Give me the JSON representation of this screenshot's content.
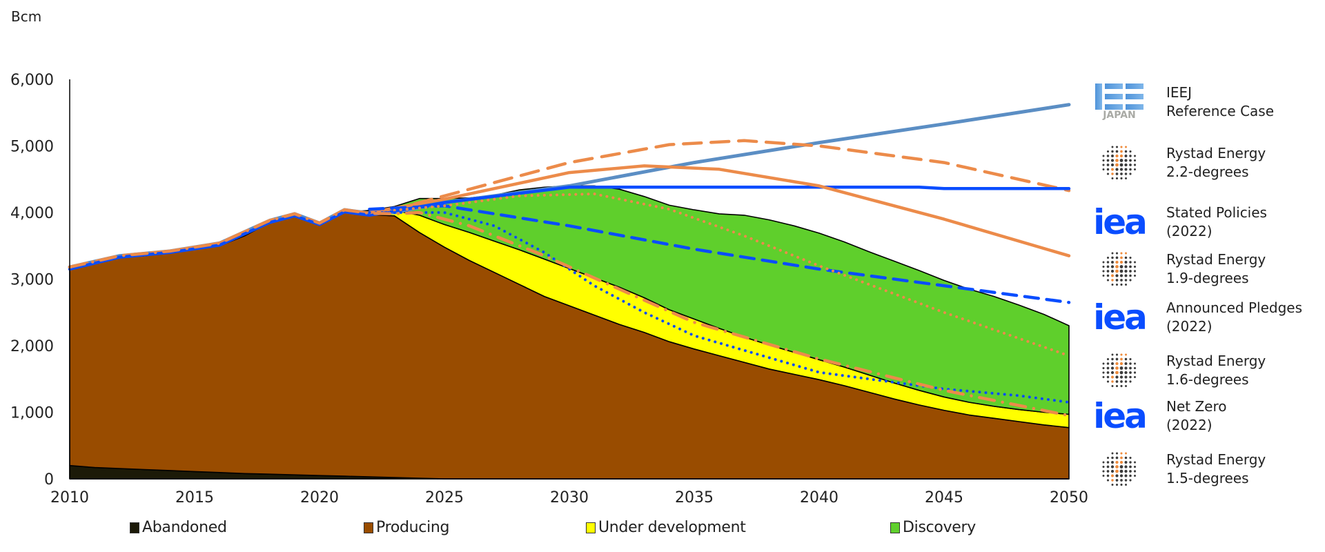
{
  "chart_data": {
    "type": "area",
    "title": "",
    "ylabel": "Bcm",
    "xlabel": "",
    "ylim": [
      0,
      6000
    ],
    "xlim": [
      2010,
      2050
    ],
    "yticks": [
      "0",
      "1,000",
      "2,000",
      "3,000",
      "4,000",
      "5,000",
      "6,000"
    ],
    "ytick_values": [
      0,
      1000,
      2000,
      3000,
      4000,
      5000,
      6000
    ],
    "xticks": [
      "2010",
      "2015",
      "2020",
      "2025",
      "2030",
      "2035",
      "2040",
      "2045",
      "2050"
    ],
    "xtick_values": [
      2010,
      2015,
      2020,
      2025,
      2030,
      2035,
      2040,
      2045,
      2050
    ],
    "grid": false,
    "x": [
      2010,
      2011,
      2012,
      2013,
      2014,
      2015,
      2016,
      2017,
      2018,
      2019,
      2020,
      2021,
      2022,
      2023,
      2024,
      2025,
      2026,
      2027,
      2028,
      2029,
      2030,
      2031,
      2032,
      2033,
      2034,
      2035,
      2036,
      2037,
      2038,
      2039,
      2040,
      2041,
      2042,
      2043,
      2044,
      2045,
      2046,
      2047,
      2048,
      2049,
      2050
    ],
    "stacked_series": [
      {
        "name": "Abandoned",
        "color": "#1c1a08",
        "values": [
          200,
          170,
          155,
          140,
          125,
          110,
          95,
          80,
          70,
          60,
          50,
          40,
          30,
          20,
          10,
          0,
          0,
          0,
          0,
          0,
          0,
          0,
          0,
          0,
          0,
          0,
          0,
          0,
          0,
          0,
          0,
          0,
          0,
          0,
          0,
          0,
          0,
          0,
          0,
          0,
          0
        ]
      },
      {
        "name": "Producing",
        "color": "#994c00",
        "values": [
          2950,
          3090,
          3175,
          3210,
          3275,
          3340,
          3405,
          3570,
          3780,
          3900,
          3780,
          3970,
          3940,
          3930,
          3690,
          3480,
          3280,
          3100,
          2920,
          2740,
          2600,
          2460,
          2320,
          2200,
          2060,
          1950,
          1850,
          1750,
          1650,
          1570,
          1490,
          1400,
          1300,
          1200,
          1110,
          1030,
          960,
          910,
          860,
          810,
          770
        ]
      },
      {
        "name": "Under development",
        "color": "#ffff00",
        "values": [
          0,
          0,
          0,
          0,
          0,
          0,
          0,
          0,
          0,
          0,
          0,
          0,
          30,
          80,
          260,
          340,
          420,
          470,
          520,
          560,
          560,
          560,
          560,
          520,
          480,
          450,
          410,
          380,
          360,
          330,
          300,
          280,
          260,
          240,
          220,
          200,
          190,
          180,
          180,
          190,
          200
        ]
      },
      {
        "name": "Discovery",
        "color": "#5fcf2c",
        "values": [
          0,
          0,
          0,
          0,
          0,
          0,
          0,
          0,
          0,
          0,
          0,
          0,
          30,
          60,
          250,
          390,
          520,
          690,
          900,
          1080,
          1240,
          1380,
          1470,
          1520,
          1570,
          1640,
          1720,
          1830,
          1880,
          1900,
          1900,
          1880,
          1850,
          1830,
          1800,
          1750,
          1700,
          1650,
          1570,
          1470,
          1330
        ]
      }
    ],
    "scenario_lines": [
      {
        "name": "IEEJ Reference Case",
        "color": "#5b8ec4",
        "style": "solid",
        "x": [
          2010,
          2012,
          2014,
          2016,
          2018,
          2019,
          2020,
          2021,
          2022,
          2023,
          2025,
          2030,
          2035,
          2040,
          2045,
          2050
        ],
        "values": [
          3180,
          3350,
          3420,
          3540,
          3880,
          3980,
          3840,
          4040,
          3990,
          4000,
          4150,
          4400,
          4750,
          5050,
          5330,
          5620
        ]
      },
      {
        "name": "Rystad Energy 2.2-degrees",
        "color": "#ec8b4a",
        "style": "long-dash",
        "x": [
          2010,
          2012,
          2014,
          2016,
          2018,
          2019,
          2020,
          2021,
          2022,
          2023,
          2025,
          2030,
          2034,
          2037,
          2040,
          2045,
          2050
        ],
        "values": [
          3180,
          3350,
          3420,
          3540,
          3880,
          3980,
          3840,
          4040,
          3990,
          4050,
          4250,
          4750,
          5020,
          5080,
          5000,
          4750,
          4330
        ]
      },
      {
        "name": "IEA Stated Policies (2022)",
        "color": "#0a4dff",
        "style": "solid",
        "x": [
          2010,
          2012,
          2014,
          2016,
          2018,
          2019,
          2020,
          2021,
          2022,
          2025,
          2030,
          2035,
          2040,
          2044,
          2045,
          2050
        ],
        "values": [
          3150,
          3330,
          3400,
          3510,
          3850,
          3950,
          3820,
          4010,
          3960,
          4150,
          4380,
          4380,
          4380,
          4380,
          4360,
          4360
        ]
      },
      {
        "name": "Rystad Energy 1.9-degrees",
        "color": "#ec8b4a",
        "style": "solid",
        "x": [
          2022,
          2025,
          2030,
          2033,
          2036,
          2040,
          2045,
          2050
        ],
        "values": [
          4000,
          4200,
          4600,
          4700,
          4650,
          4400,
          3900,
          3350
        ]
      },
      {
        "name": "IEA Announced Pledges (2022)",
        "color": "#0a4dff",
        "style": "dash",
        "x": [
          2022,
          2025,
          2030,
          2035,
          2040,
          2045,
          2050
        ],
        "values": [
          4050,
          4100,
          3800,
          3450,
          3150,
          2900,
          2650
        ]
      },
      {
        "name": "Rystad Energy 1.6-degrees",
        "color": "#ec8b4a",
        "style": "dot",
        "x": [
          2022,
          2025,
          2028,
          2031,
          2034,
          2037,
          2040,
          2045,
          2050
        ],
        "values": [
          4000,
          4100,
          4250,
          4280,
          4050,
          3650,
          3200,
          2500,
          1850
        ]
      },
      {
        "name": "IEA Net Zero (2022)",
        "color": "#0a4dff",
        "style": "dot",
        "x": [
          2022,
          2025,
          2027,
          2029,
          2031,
          2033,
          2035,
          2040,
          2045,
          2048,
          2050
        ],
        "values": [
          4000,
          4000,
          3800,
          3400,
          2900,
          2500,
          2150,
          1600,
          1350,
          1250,
          1150
        ]
      },
      {
        "name": "Rystad Energy 1.5-degrees",
        "color": "#ec8b4a",
        "style": "dash-dot",
        "x": [
          2010,
          2012,
          2014,
          2016,
          2018,
          2019,
          2020,
          2021,
          2022,
          2023,
          2024,
          2026,
          2029,
          2032,
          2035,
          2040,
          2045,
          2050
        ],
        "values": [
          3180,
          3350,
          3420,
          3540,
          3880,
          3980,
          3840,
          4040,
          3990,
          3980,
          4000,
          3800,
          3350,
          2850,
          2350,
          1800,
          1330,
          950
        ]
      }
    ],
    "legend_bottom": [
      "Abandoned",
      "Producing",
      "Under development",
      "Discovery"
    ],
    "legend_right_placement": "right"
  },
  "unit_label": "Bcm",
  "scenarios": [
    {
      "logo": "ieej-japan-logo",
      "logo_text": "JAPAN",
      "line1": "IEEJ",
      "line2": "Reference Case"
    },
    {
      "logo": "rystad-energy-logo",
      "line1": "Rystad Energy",
      "line2": "2.2-degrees"
    },
    {
      "logo": "iea-logo",
      "logo_text": "iea",
      "line1": "Stated Policies",
      "line2": "(2022)"
    },
    {
      "logo": "rystad-energy-logo",
      "line1": "Rystad Energy",
      "line2": "1.9-degrees"
    },
    {
      "logo": "iea-logo",
      "logo_text": "iea",
      "line1": "Announced Pledges",
      "line2": "(2022)"
    },
    {
      "logo": "rystad-energy-logo",
      "line1": "Rystad Energy",
      "line2": "1.6-degrees"
    },
    {
      "logo": "iea-logo",
      "logo_text": "iea",
      "line1": "Net Zero",
      "line2": "(2022)"
    },
    {
      "logo": "rystad-energy-logo",
      "line1": "Rystad Energy",
      "line2": "1.5-degrees"
    }
  ]
}
